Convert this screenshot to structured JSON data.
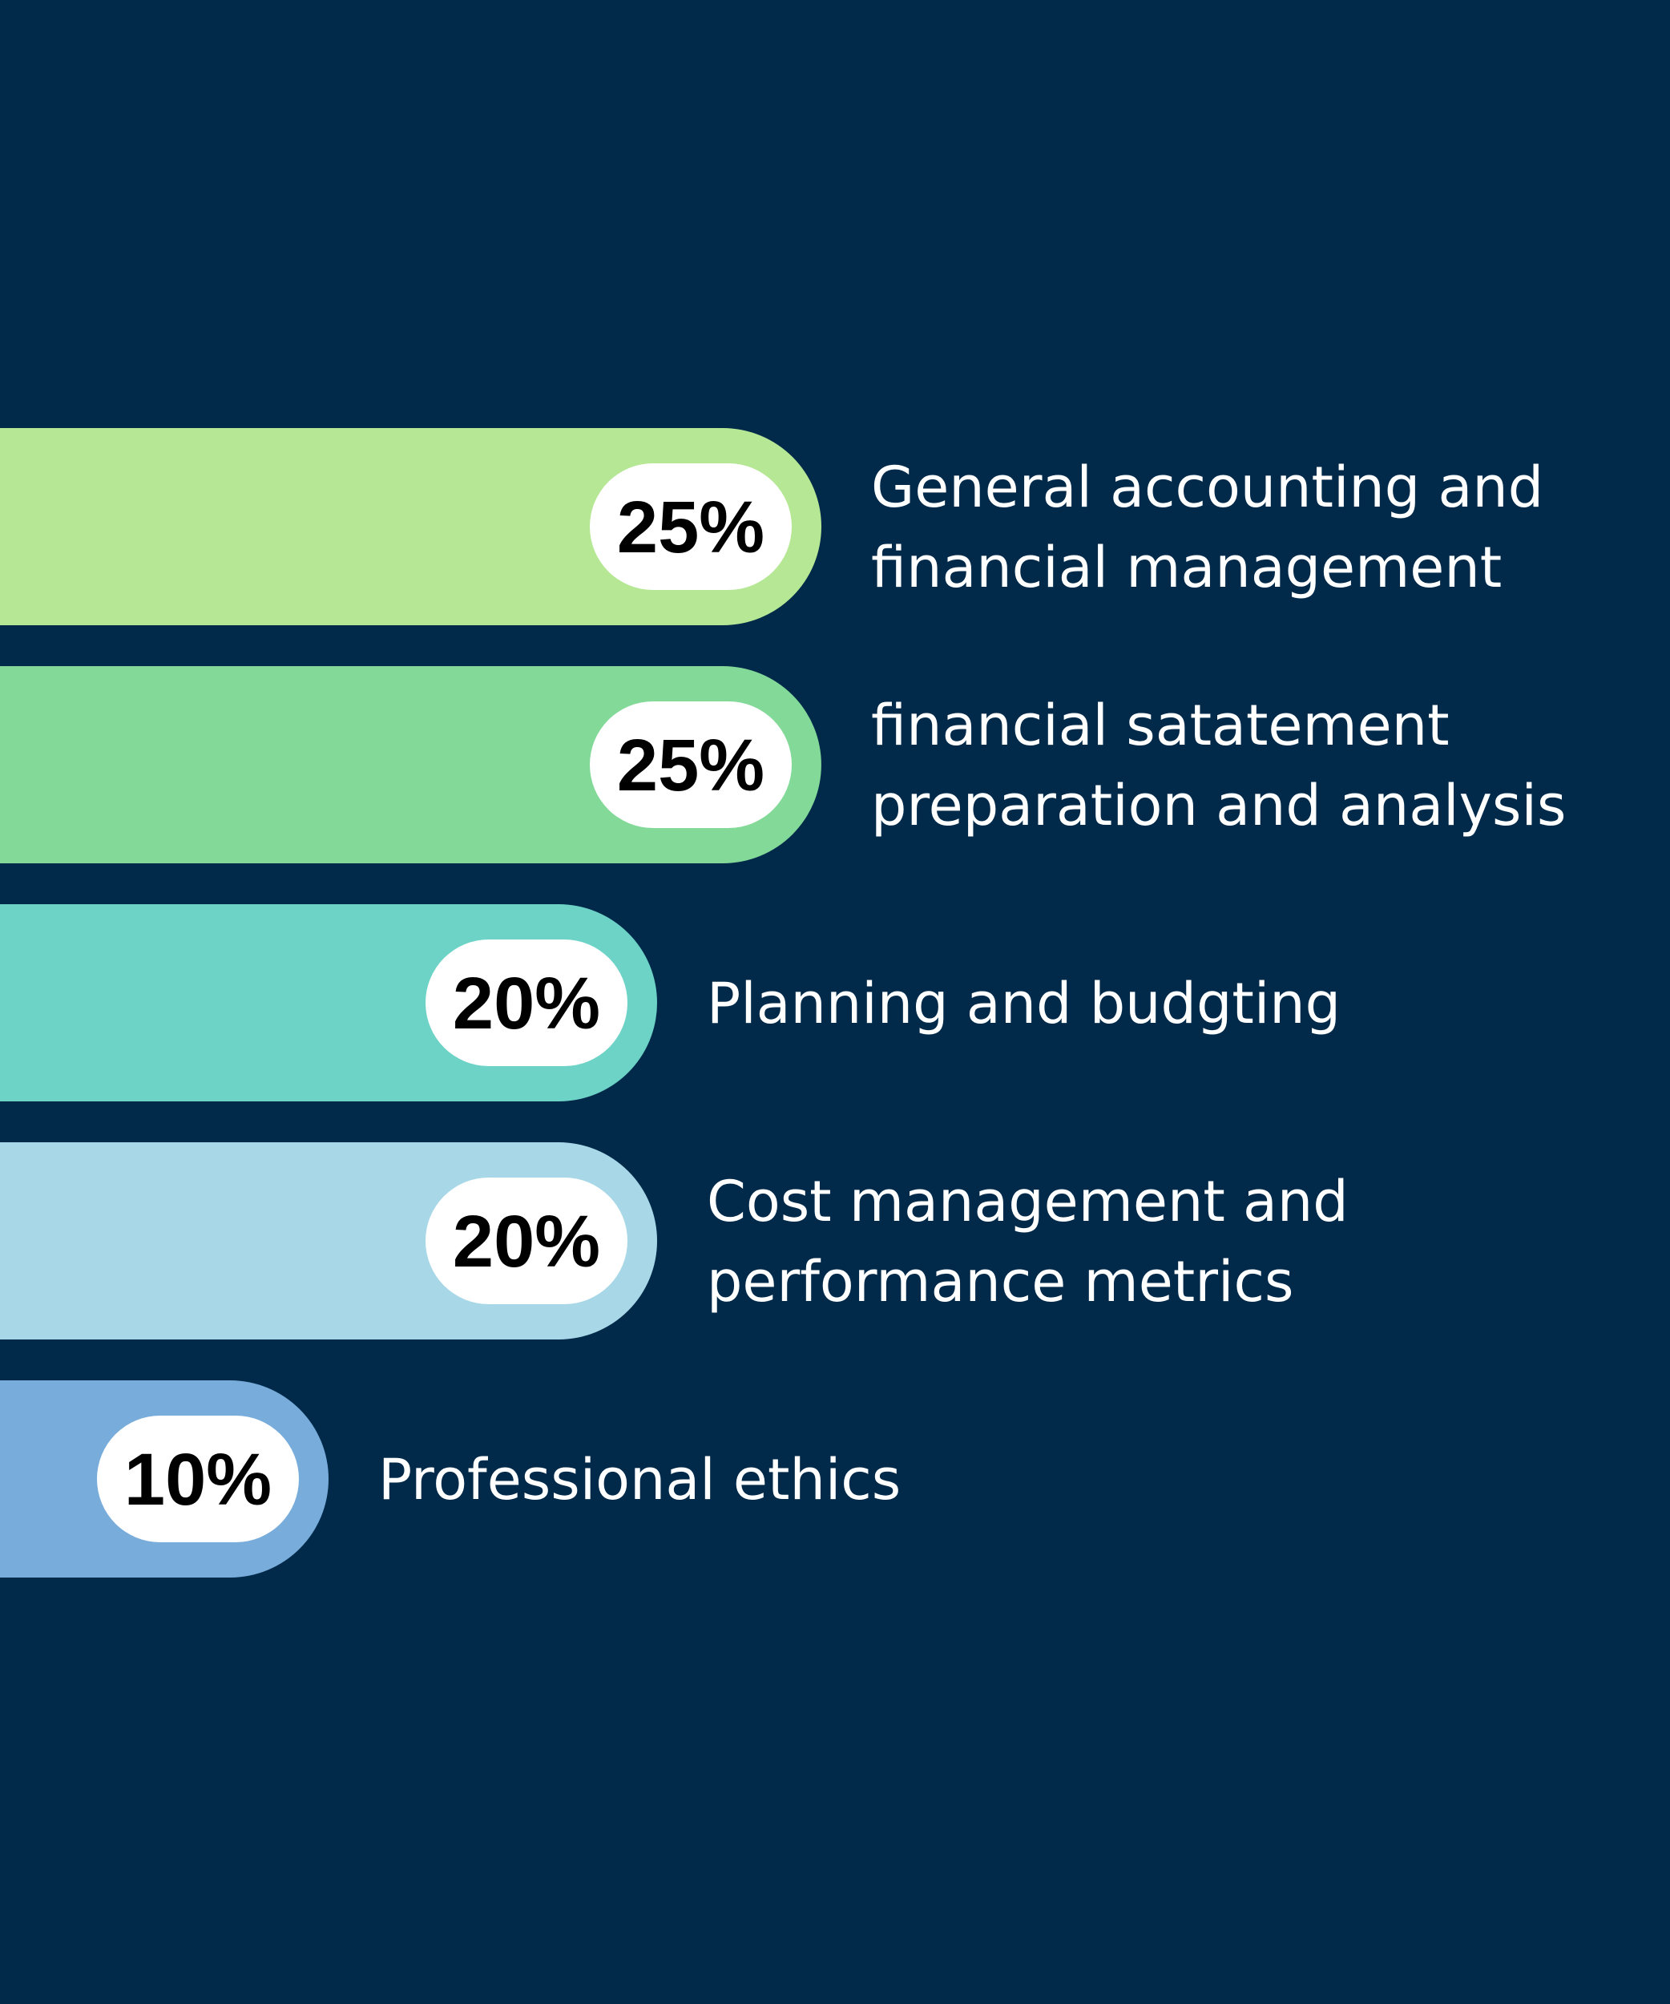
{
  "background_color": "#012a4a",
  "chart_data": {
    "type": "bar",
    "orientation": "horizontal",
    "title": "",
    "xlabel": "",
    "ylabel": "",
    "unit": "%",
    "categories": [
      [
        "General accounting and",
        "financial management"
      ],
      [
        "financial satatement",
        "preparation and analysis"
      ],
      [
        "Planning and budgting"
      ],
      [
        "Cost management and",
        "performance metrics"
      ],
      [
        "Professional ethics"
      ]
    ],
    "values": [
      25,
      25,
      20,
      20,
      10
    ],
    "labels": [
      "25%",
      "25%",
      "20%",
      "20%",
      "10%"
    ],
    "colors": [
      "#b5e794",
      "#82d998",
      "#6cd3c6",
      "#a8d8e8",
      "#78acdb"
    ],
    "label_pill_color": "#ffffff",
    "label_text_color": "#000000",
    "category_text_color": "#ffffff",
    "xlim": [
      0,
      25
    ],
    "grid": false,
    "legend": "none"
  }
}
